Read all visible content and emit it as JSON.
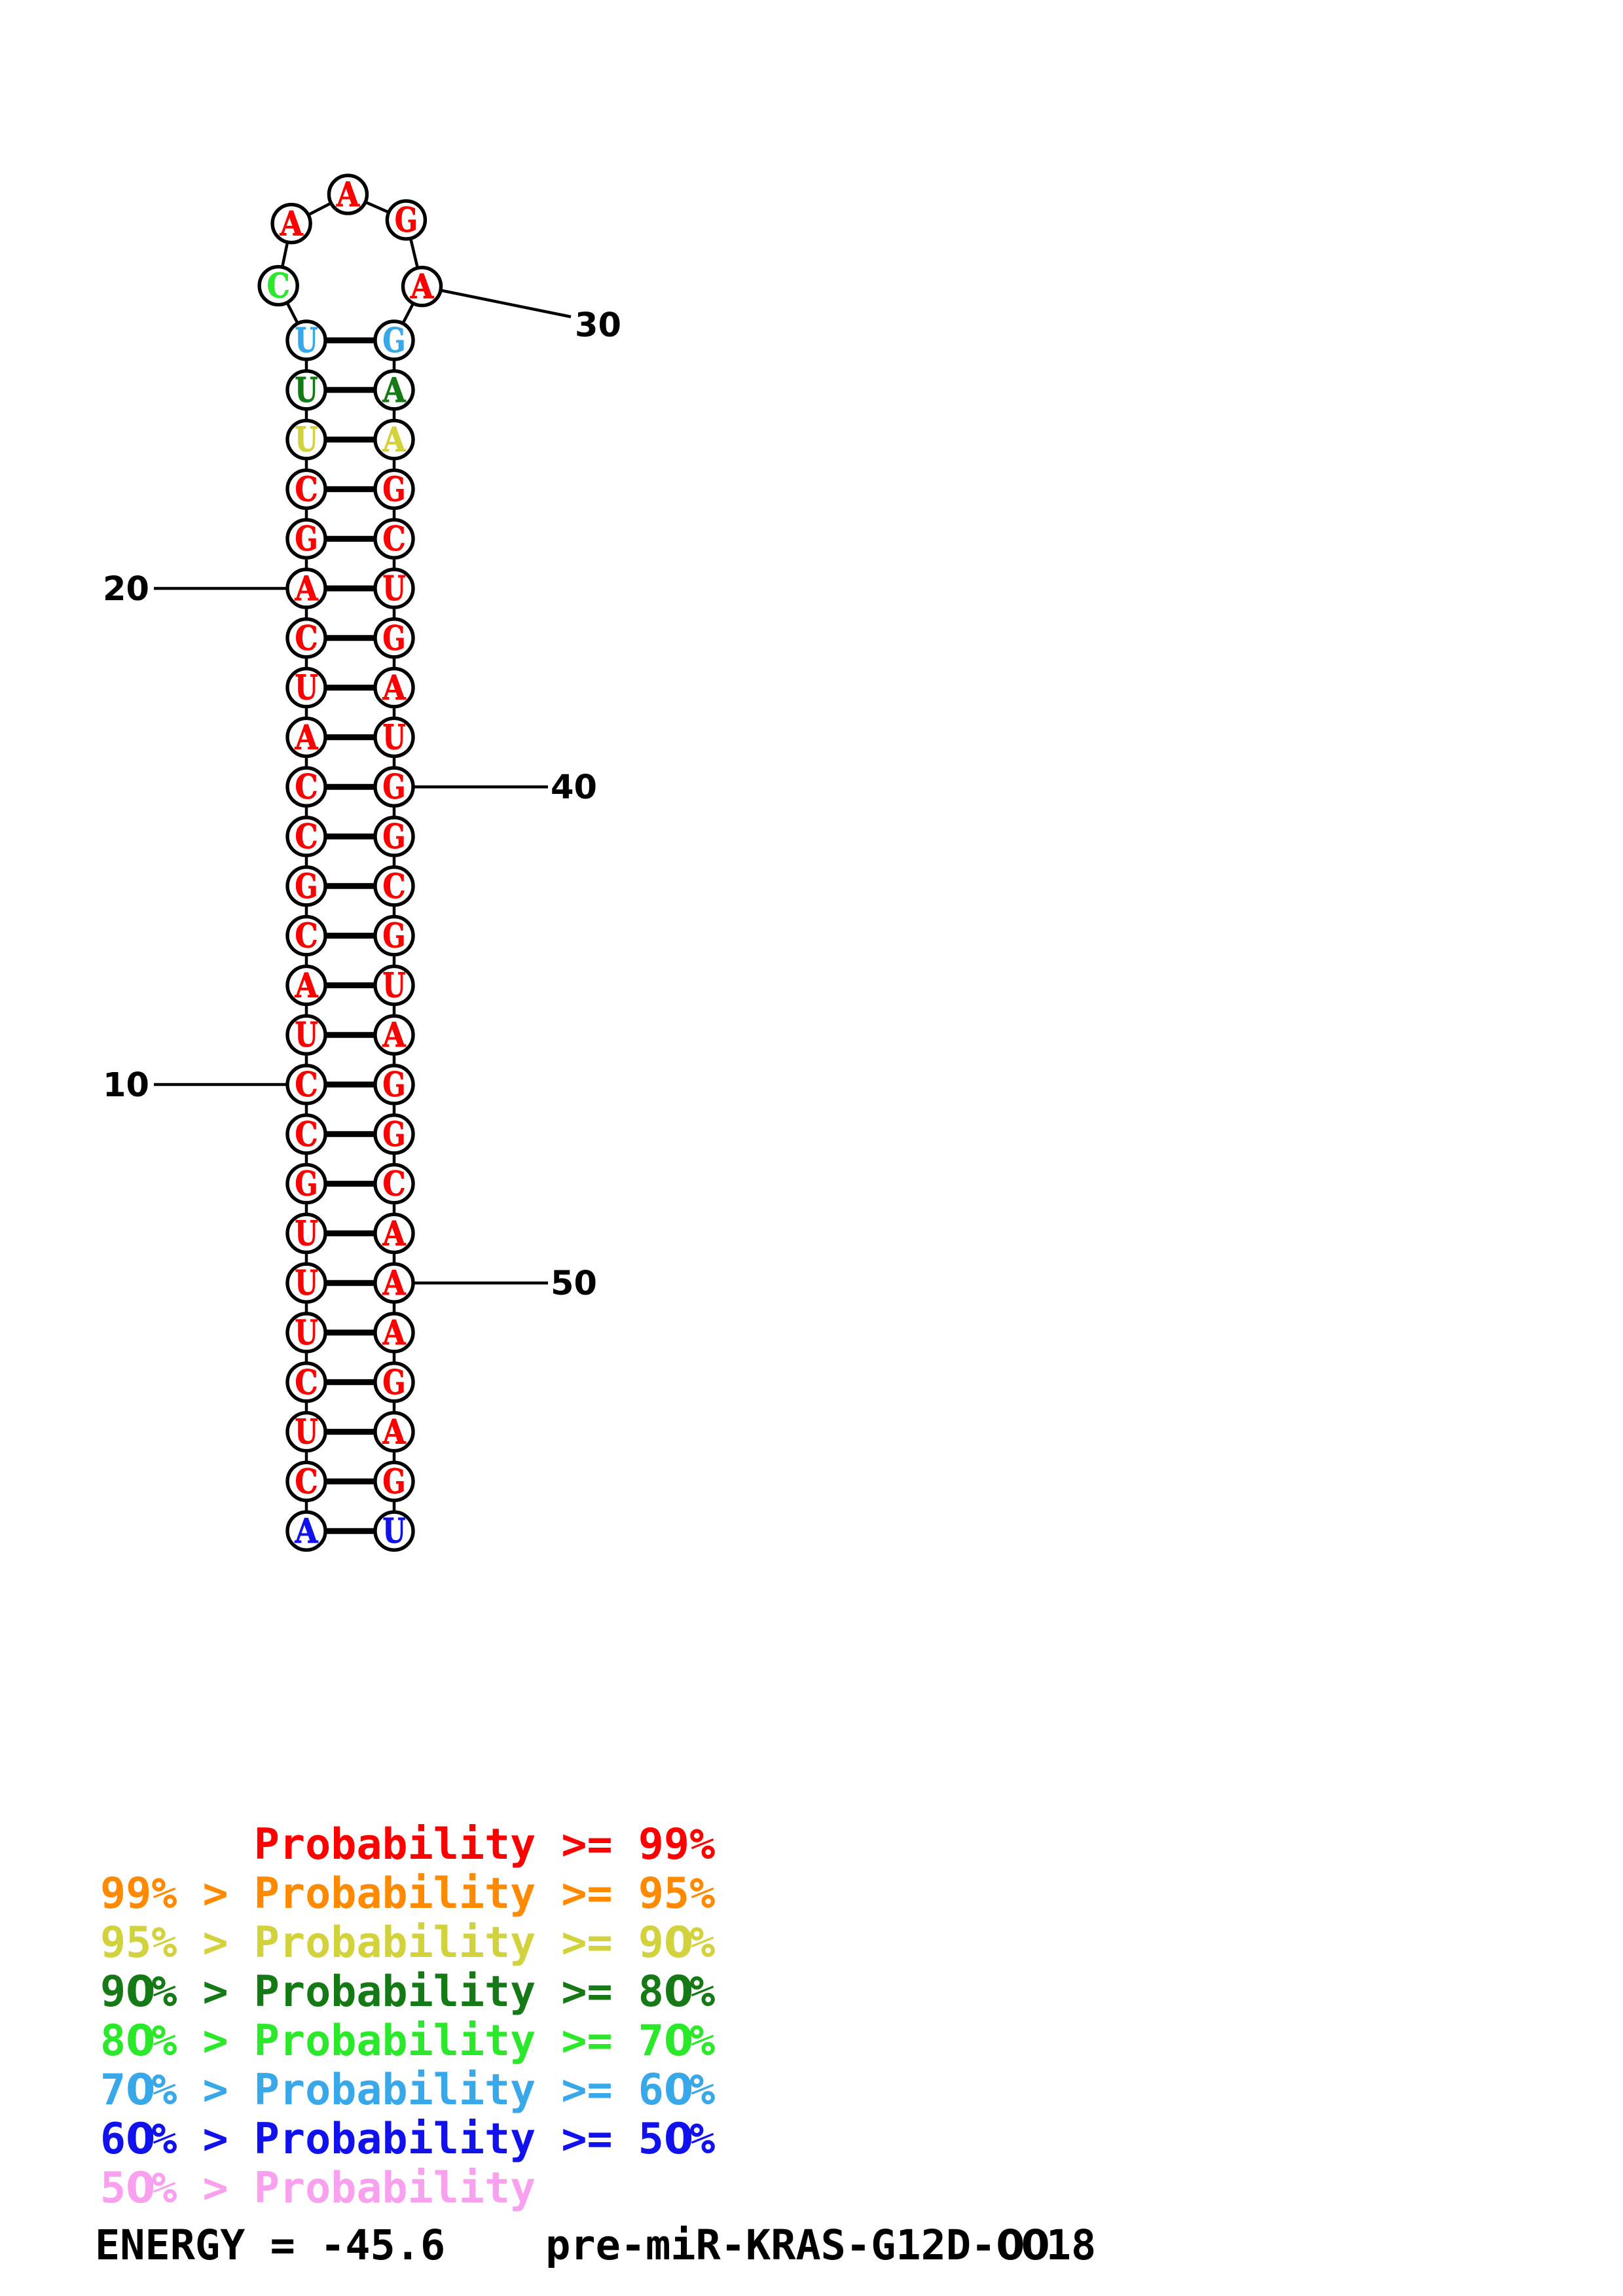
{
  "structure": {
    "left_column": [
      {
        "base": "U",
        "color": "cyan"
      },
      {
        "base": "U",
        "color": "dgreen"
      },
      {
        "base": "U",
        "color": "yellow"
      },
      {
        "base": "C",
        "color": "red"
      },
      {
        "base": "G",
        "color": "red"
      },
      {
        "base": "A",
        "color": "red"
      },
      {
        "base": "C",
        "color": "red"
      },
      {
        "base": "U",
        "color": "red"
      },
      {
        "base": "A",
        "color": "red"
      },
      {
        "base": "C",
        "color": "red"
      },
      {
        "base": "C",
        "color": "red"
      },
      {
        "base": "G",
        "color": "red"
      },
      {
        "base": "C",
        "color": "red"
      },
      {
        "base": "A",
        "color": "red"
      },
      {
        "base": "U",
        "color": "red"
      },
      {
        "base": "C",
        "color": "red"
      },
      {
        "base": "C",
        "color": "red"
      },
      {
        "base": "G",
        "color": "red"
      },
      {
        "base": "U",
        "color": "red"
      },
      {
        "base": "U",
        "color": "red"
      },
      {
        "base": "U",
        "color": "red"
      },
      {
        "base": "C",
        "color": "red"
      },
      {
        "base": "U",
        "color": "red"
      },
      {
        "base": "C",
        "color": "red"
      },
      {
        "base": "A",
        "color": "blue"
      }
    ],
    "right_column": [
      {
        "base": "G",
        "color": "cyan"
      },
      {
        "base": "A",
        "color": "dgreen"
      },
      {
        "base": "A",
        "color": "yellow"
      },
      {
        "base": "G",
        "color": "red"
      },
      {
        "base": "C",
        "color": "red"
      },
      {
        "base": "U",
        "color": "red"
      },
      {
        "base": "G",
        "color": "red"
      },
      {
        "base": "A",
        "color": "red"
      },
      {
        "base": "U",
        "color": "red"
      },
      {
        "base": "G",
        "color": "red"
      },
      {
        "base": "G",
        "color": "red"
      },
      {
        "base": "C",
        "color": "red"
      },
      {
        "base": "G",
        "color": "red"
      },
      {
        "base": "U",
        "color": "red"
      },
      {
        "base": "A",
        "color": "red"
      },
      {
        "base": "G",
        "color": "red"
      },
      {
        "base": "G",
        "color": "red"
      },
      {
        "base": "C",
        "color": "red"
      },
      {
        "base": "A",
        "color": "red"
      },
      {
        "base": "A",
        "color": "red"
      },
      {
        "base": "A",
        "color": "red"
      },
      {
        "base": "G",
        "color": "red"
      },
      {
        "base": "A",
        "color": "red"
      },
      {
        "base": "G",
        "color": "red"
      },
      {
        "base": "U",
        "color": "blue"
      }
    ],
    "loop": [
      {
        "base": "C",
        "color": "green"
      },
      {
        "base": "A",
        "color": "red"
      },
      {
        "base": "A",
        "color": "red"
      },
      {
        "base": "G",
        "color": "red"
      },
      {
        "base": "A",
        "color": "red"
      }
    ],
    "labels": [
      {
        "text": "20",
        "side": "left",
        "row": 6
      },
      {
        "text": "10",
        "side": "left",
        "row": 16
      },
      {
        "text": "40",
        "side": "right",
        "row": 10
      },
      {
        "text": "50",
        "side": "right",
        "row": 20
      },
      {
        "text": "30",
        "side": "loop",
        "row": 0
      }
    ]
  },
  "legend": {
    "items": [
      {
        "text": "      Probability >= 99%",
        "color": "red"
      },
      {
        "text": "99% > Probability >= 95%",
        "color": "orange"
      },
      {
        "text": "95% > Probability >= 90%",
        "color": "yellow"
      },
      {
        "text": "90% > Probability >= 80%",
        "color": "dgreen"
      },
      {
        "text": "80% > Probability >= 70%",
        "color": "green"
      },
      {
        "text": "70% > Probability >= 60%",
        "color": "cyan"
      },
      {
        "text": "60% > Probability >= 50%",
        "color": "blue"
      },
      {
        "text": "50% > Probability",
        "color": "pink"
      }
    ]
  },
  "energy": {
    "text": "ENERGY = -45.6    pre-miR-KRAS-G12D-0018"
  },
  "colors": {
    "red": "#FF0000",
    "orange": "#FF8A00",
    "yellow": "#D2D23C",
    "dgreen": "#157A15",
    "green": "#2BE82B",
    "cyan": "#38A8E8",
    "blue": "#1111EE",
    "pink": "#F9A1EF",
    "black": "#000000"
  }
}
